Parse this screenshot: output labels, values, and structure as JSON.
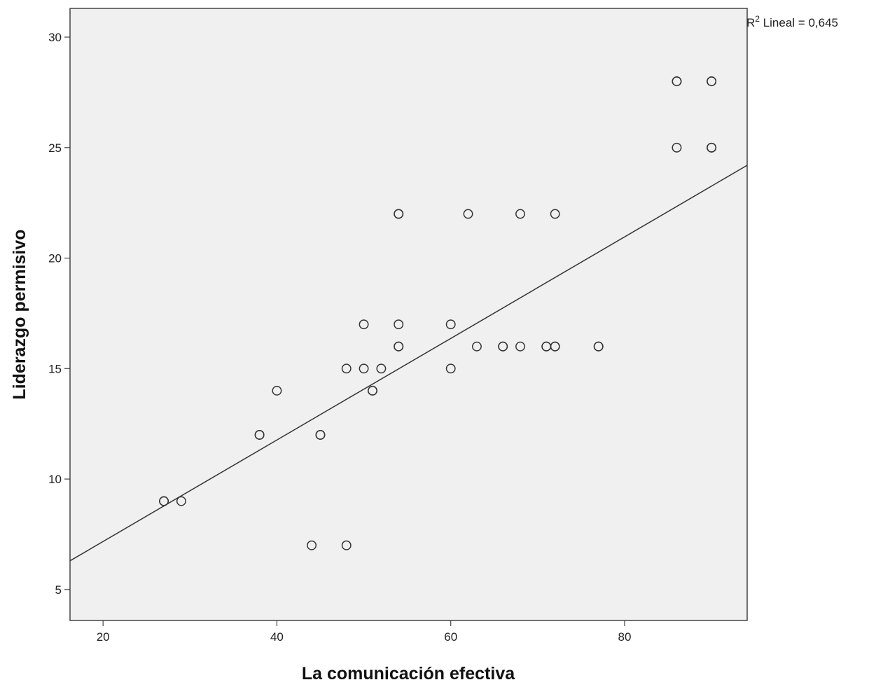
{
  "chart_data": {
    "type": "scatter",
    "xlabel": "La comunicación efectiva",
    "ylabel": "Liderazgo permisivo",
    "xlim": [
      16.2,
      94.1
    ],
    "ylim": [
      3.6,
      31.3
    ],
    "xticks": [
      20,
      40,
      60,
      80
    ],
    "yticks": [
      5,
      10,
      15,
      20,
      25,
      30
    ],
    "grid": false,
    "plot_background": "#f0f0f0",
    "marker_color": "#333333",
    "points": [
      {
        "x": 27,
        "y": 9
      },
      {
        "x": 27,
        "y": 9
      },
      {
        "x": 29,
        "y": 9
      },
      {
        "x": 38,
        "y": 12
      },
      {
        "x": 38,
        "y": 12
      },
      {
        "x": 40,
        "y": 14
      },
      {
        "x": 44,
        "y": 7
      },
      {
        "x": 45,
        "y": 12
      },
      {
        "x": 45,
        "y": 12
      },
      {
        "x": 48,
        "y": 7
      },
      {
        "x": 48,
        "y": 15
      },
      {
        "x": 50,
        "y": 15
      },
      {
        "x": 50,
        "y": 17
      },
      {
        "x": 51,
        "y": 14
      },
      {
        "x": 51,
        "y": 14
      },
      {
        "x": 52,
        "y": 15
      },
      {
        "x": 54,
        "y": 16
      },
      {
        "x": 54,
        "y": 16
      },
      {
        "x": 54,
        "y": 17
      },
      {
        "x": 54,
        "y": 22
      },
      {
        "x": 54,
        "y": 22
      },
      {
        "x": 60,
        "y": 15
      },
      {
        "x": 60,
        "y": 17
      },
      {
        "x": 62,
        "y": 22
      },
      {
        "x": 63,
        "y": 16
      },
      {
        "x": 66,
        "y": 16
      },
      {
        "x": 66,
        "y": 16
      },
      {
        "x": 68,
        "y": 16
      },
      {
        "x": 68,
        "y": 22
      },
      {
        "x": 71,
        "y": 16
      },
      {
        "x": 71,
        "y": 16
      },
      {
        "x": 72,
        "y": 16
      },
      {
        "x": 72,
        "y": 16
      },
      {
        "x": 72,
        "y": 22
      },
      {
        "x": 77,
        "y": 16
      },
      {
        "x": 77,
        "y": 16
      },
      {
        "x": 86,
        "y": 25
      },
      {
        "x": 86,
        "y": 28
      },
      {
        "x": 86,
        "y": 28
      },
      {
        "x": 90,
        "y": 25
      },
      {
        "x": 90,
        "y": 25
      },
      {
        "x": 90,
        "y": 28
      },
      {
        "x": 90,
        "y": 28
      }
    ],
    "fit_line": {
      "x": [
        16.2,
        94.1
      ],
      "y": [
        6.3,
        24.2
      ]
    },
    "annotation": {
      "base": "R",
      "sup": "2",
      "text": " Lineal = 0,645"
    }
  }
}
